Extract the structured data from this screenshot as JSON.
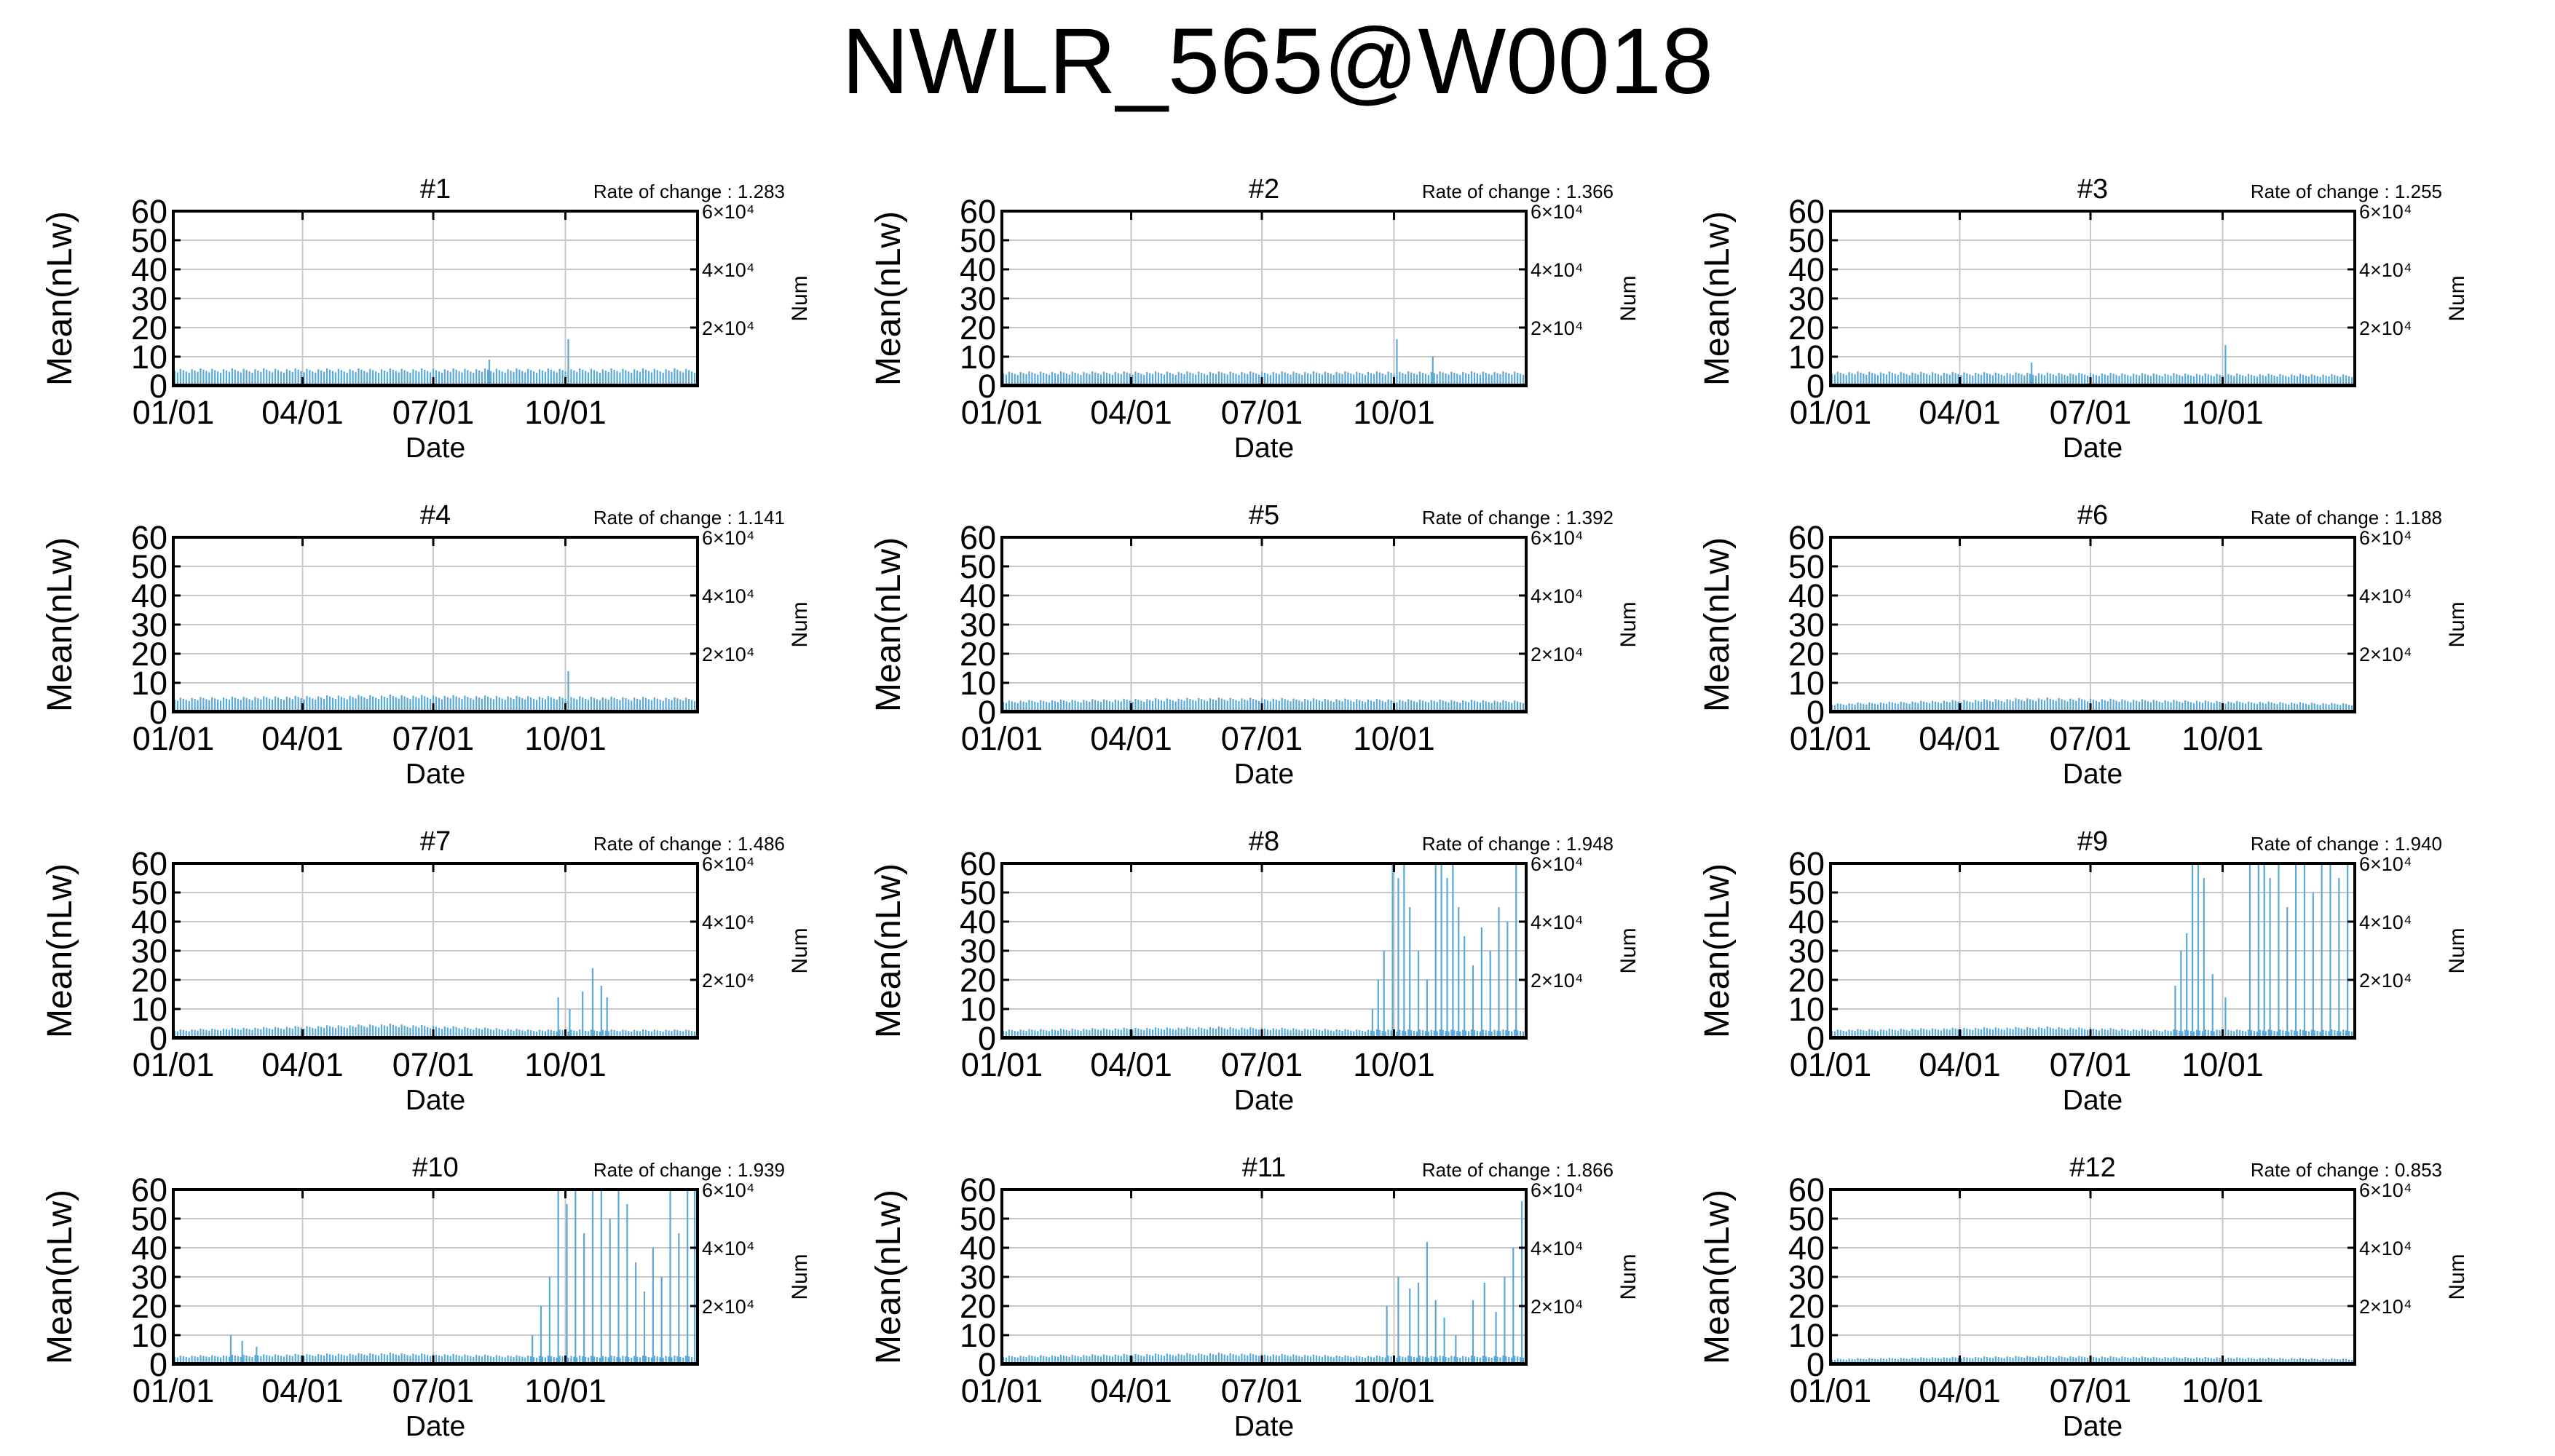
{
  "title": "NWLR_565@W0018",
  "chart_data": {
    "type": "bar",
    "layout": "4 rows x 3 columns of small-multiple panels",
    "shared": {
      "xlabel": "Date",
      "ylabel": "Mean(nLw)",
      "y2label": "Num",
      "ylim": [
        0,
        60
      ],
      "yticks": [
        "0",
        "10",
        "20",
        "30",
        "40",
        "50",
        "60"
      ],
      "xticks": [
        "01/01",
        "04/01",
        "07/01",
        "10/01"
      ],
      "x_range_days": [
        0,
        365
      ],
      "y2ticks": [
        "2×10⁴",
        "4×10⁴",
        "6×10⁴"
      ],
      "grid": true,
      "bar_color": "#5aa9d6"
    },
    "panels": [
      {
        "title": "#1",
        "rate_label": "Rate of change : 1.283",
        "profile": [
          [
            0,
            6
          ],
          [
            365,
            6
          ]
        ],
        "spikes": [
          [
            275,
            16
          ],
          [
            220,
            9
          ]
        ]
      },
      {
        "title": "#2",
        "rate_label": "Rate of change : 1.366",
        "profile": [
          [
            0,
            5
          ],
          [
            365,
            5
          ]
        ],
        "spikes": [
          [
            275,
            16
          ],
          [
            300,
            10
          ]
        ]
      },
      {
        "title": "#3",
        "rate_label": "Rate of change : 1.255",
        "profile": [
          [
            0,
            5
          ],
          [
            365,
            4
          ]
        ],
        "spikes": [
          [
            275,
            14
          ],
          [
            140,
            8
          ]
        ]
      },
      {
        "title": "#4",
        "rate_label": "Rate of change : 1.141",
        "profile": [
          [
            0,
            5
          ],
          [
            150,
            6
          ],
          [
            365,
            5
          ]
        ],
        "spikes": [
          [
            275,
            14
          ]
        ]
      },
      {
        "title": "#5",
        "rate_label": "Rate of change : 1.392",
        "profile": [
          [
            0,
            4
          ],
          [
            150,
            5
          ],
          [
            365,
            4
          ]
        ],
        "spikes": []
      },
      {
        "title": "#6",
        "rate_label": "Rate of change : 1.188",
        "profile": [
          [
            0,
            3
          ],
          [
            150,
            5
          ],
          [
            365,
            3
          ]
        ],
        "spikes": []
      },
      {
        "title": "#7",
        "rate_label": "Rate of change : 1.486",
        "profile": [
          [
            0,
            3
          ],
          [
            150,
            5
          ],
          [
            250,
            3
          ],
          [
            365,
            3
          ]
        ],
        "spikes": [
          [
            268,
            14
          ],
          [
            276,
            10
          ],
          [
            285,
            16
          ],
          [
            292,
            24
          ],
          [
            298,
            18
          ],
          [
            302,
            14
          ]
        ]
      },
      {
        "title": "#8",
        "rate_label": "Rate of change : 1.948",
        "profile": [
          [
            0,
            3
          ],
          [
            150,
            4
          ],
          [
            250,
            3
          ],
          [
            365,
            3
          ]
        ],
        "spikes": [
          [
            258,
            10
          ],
          [
            262,
            20
          ],
          [
            266,
            30
          ],
          [
            272,
            60
          ],
          [
            276,
            55
          ],
          [
            280,
            60
          ],
          [
            284,
            45
          ],
          [
            290,
            30
          ],
          [
            296,
            20
          ],
          [
            302,
            60
          ],
          [
            306,
            60
          ],
          [
            310,
            55
          ],
          [
            314,
            60
          ],
          [
            318,
            45
          ],
          [
            322,
            35
          ],
          [
            328,
            25
          ],
          [
            334,
            38
          ],
          [
            340,
            30
          ],
          [
            346,
            45
          ],
          [
            352,
            40
          ],
          [
            358,
            60
          ]
        ]
      },
      {
        "title": "#9",
        "rate_label": "Rate of change : 1.940",
        "profile": [
          [
            0,
            3
          ],
          [
            150,
            4
          ],
          [
            230,
            3
          ],
          [
            365,
            3
          ]
        ],
        "spikes": [
          [
            240,
            18
          ],
          [
            244,
            30
          ],
          [
            248,
            36
          ],
          [
            252,
            60
          ],
          [
            256,
            60
          ],
          [
            260,
            55
          ],
          [
            266,
            22
          ],
          [
            275,
            14
          ],
          [
            292,
            60
          ],
          [
            298,
            60
          ],
          [
            302,
            60
          ],
          [
            306,
            55
          ],
          [
            312,
            60
          ],
          [
            318,
            45
          ],
          [
            324,
            60
          ],
          [
            330,
            60
          ],
          [
            336,
            50
          ],
          [
            342,
            60
          ],
          [
            348,
            60
          ],
          [
            354,
            55
          ],
          [
            360,
            60
          ]
        ]
      },
      {
        "title": "#10",
        "rate_label": "Rate of change : 1.939",
        "profile": [
          [
            0,
            3
          ],
          [
            150,
            4
          ],
          [
            250,
            3
          ],
          [
            365,
            3
          ]
        ],
        "spikes": [
          [
            40,
            10
          ],
          [
            48,
            8
          ],
          [
            58,
            6
          ],
          [
            250,
            10
          ],
          [
            256,
            20
          ],
          [
            262,
            30
          ],
          [
            268,
            60
          ],
          [
            274,
            55
          ],
          [
            280,
            60
          ],
          [
            286,
            45
          ],
          [
            292,
            60
          ],
          [
            298,
            60
          ],
          [
            304,
            50
          ],
          [
            310,
            60
          ],
          [
            316,
            55
          ],
          [
            322,
            35
          ],
          [
            328,
            25
          ],
          [
            334,
            40
          ],
          [
            340,
            30
          ],
          [
            346,
            60
          ],
          [
            352,
            45
          ],
          [
            358,
            60
          ],
          [
            363,
            60
          ]
        ]
      },
      {
        "title": "#11",
        "rate_label": "Rate of change : 1.866",
        "profile": [
          [
            0,
            3
          ],
          [
            150,
            4
          ],
          [
            250,
            3
          ],
          [
            365,
            3
          ]
        ],
        "spikes": [
          [
            268,
            20
          ],
          [
            276,
            30
          ],
          [
            284,
            26
          ],
          [
            290,
            28
          ],
          [
            296,
            42
          ],
          [
            302,
            22
          ],
          [
            308,
            16
          ],
          [
            316,
            10
          ],
          [
            328,
            22
          ],
          [
            336,
            28
          ],
          [
            344,
            18
          ],
          [
            350,
            30
          ],
          [
            356,
            40
          ],
          [
            362,
            56
          ]
        ]
      },
      {
        "title": "#12",
        "rate_label": "Rate of change : 0.853",
        "profile": [
          [
            0,
            2
          ],
          [
            150,
            3
          ],
          [
            365,
            2
          ]
        ],
        "spikes": []
      }
    ]
  }
}
